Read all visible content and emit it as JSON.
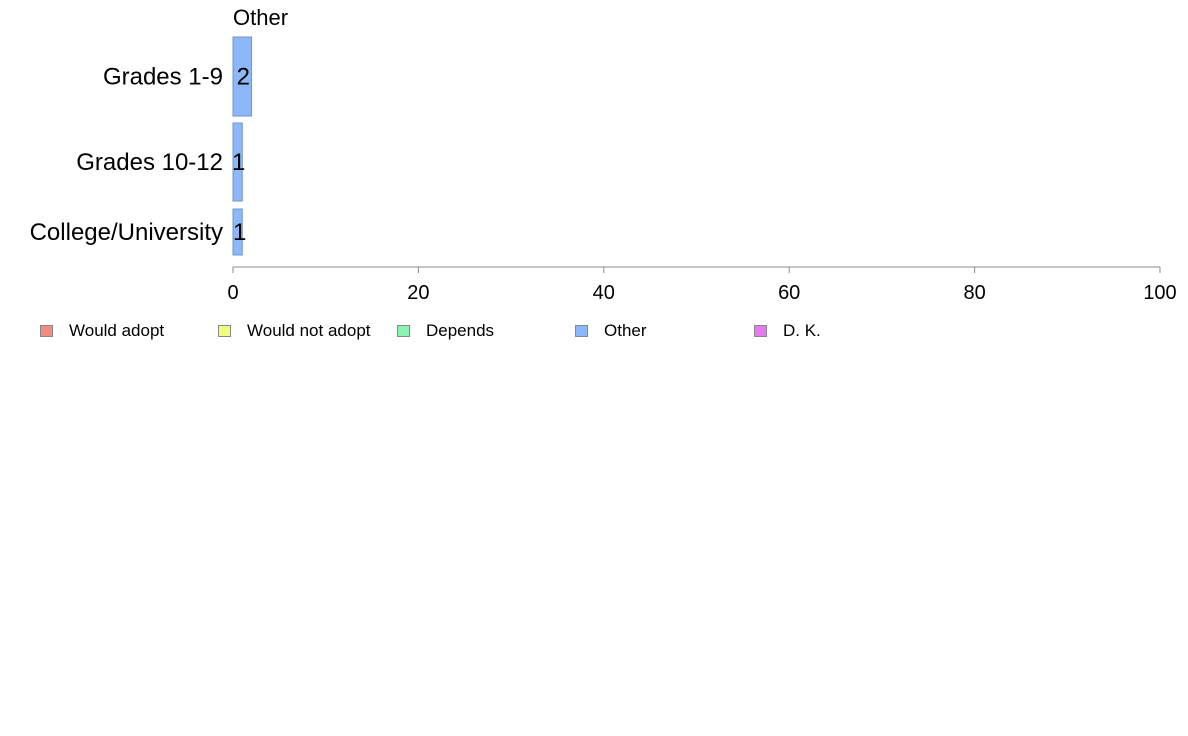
{
  "chart_data": {
    "type": "bar",
    "orientation": "horizontal",
    "title": "Other",
    "categories": [
      "Grades 1-9",
      "Grades 10-12",
      "College/University"
    ],
    "series": [
      {
        "name": "Other",
        "values": [
          2,
          1,
          1
        ],
        "labels": [
          "2",
          "1",
          "1"
        ],
        "color": "#8cb8f9"
      }
    ],
    "xlim": [
      0,
      100
    ],
    "xticks": [
      0,
      20,
      40,
      60,
      80,
      100
    ],
    "xtick_labels": [
      "0",
      "20",
      "40",
      "60",
      "80",
      "100"
    ],
    "grid": false,
    "legend": {
      "placement": "bottom",
      "entries": [
        {
          "name": "Would adopt",
          "color": "#f28b82"
        },
        {
          "name": "Would not adopt",
          "color": "#eefd7f"
        },
        {
          "name": "Depends",
          "color": "#8af5b0"
        },
        {
          "name": "Other",
          "color": "#8cb8f9"
        },
        {
          "name": "D. K.",
          "color": "#e67bf0"
        }
      ]
    }
  }
}
